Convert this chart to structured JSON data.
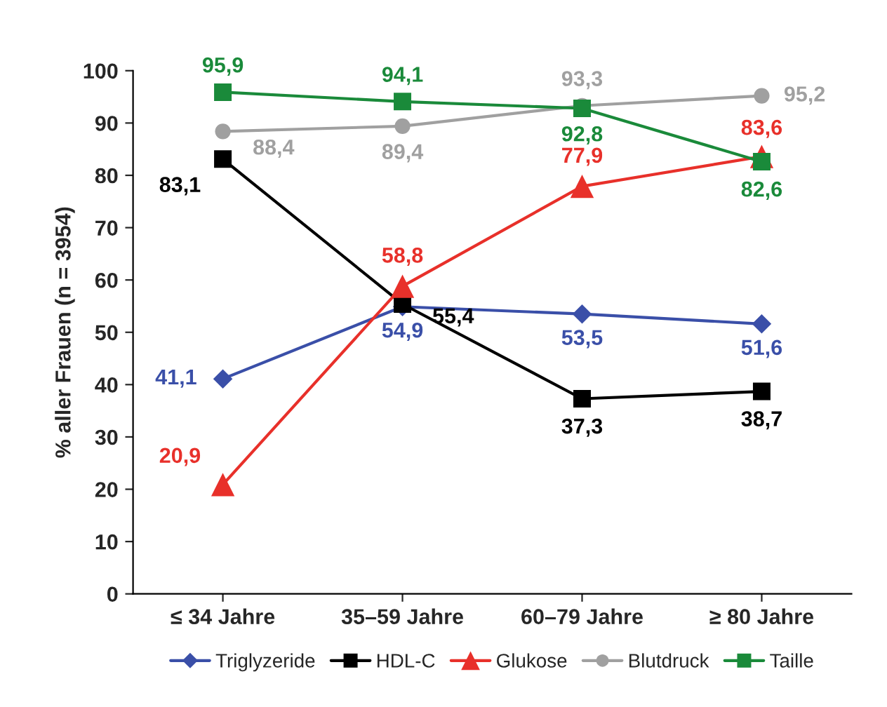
{
  "chart_data": {
    "type": "line",
    "ylabel": "% aller Frauen (n = 3954)",
    "categories": [
      "≤ 34 Jahre",
      "35–59 Jahre",
      "60–79 Jahre",
      "≥ 80 Jahre"
    ],
    "ylim": [
      0,
      100
    ],
    "yticks": [
      0,
      10,
      20,
      30,
      40,
      50,
      60,
      70,
      80,
      90,
      100
    ],
    "grid": false,
    "legend": "bottom",
    "series": [
      {
        "name": "Triglyzeride",
        "color": "#3a4fa8",
        "marker": "diamond",
        "values": [
          41.1,
          54.9,
          53.5,
          51.6
        ],
        "value_labels": [
          "41,1",
          "54,9",
          "53,5",
          "51,6"
        ]
      },
      {
        "name": "HDL-C",
        "color": "#000000",
        "marker": "square",
        "values": [
          83.1,
          55.4,
          37.3,
          38.7
        ],
        "value_labels": [
          "83,1",
          "55,4",
          "37,3",
          "38,7"
        ]
      },
      {
        "name": "Glukose",
        "color": "#e8302a",
        "marker": "triangle",
        "values": [
          20.9,
          58.8,
          77.9,
          83.6
        ],
        "value_labels": [
          "20,9",
          "58,8",
          "77,9",
          "83,6"
        ]
      },
      {
        "name": "Blutdruck",
        "color": "#a0a0a0",
        "marker": "circle",
        "values": [
          88.4,
          89.4,
          93.3,
          95.2
        ],
        "value_labels": [
          "88,4",
          "89,4",
          "93,3",
          "95,2"
        ]
      },
      {
        "name": "Taille",
        "color": "#1a8a3a",
        "marker": "square",
        "values": [
          95.9,
          94.1,
          92.8,
          82.6
        ],
        "value_labels": [
          "95,9",
          "94,1",
          "92,8",
          "82,6"
        ]
      }
    ]
  }
}
